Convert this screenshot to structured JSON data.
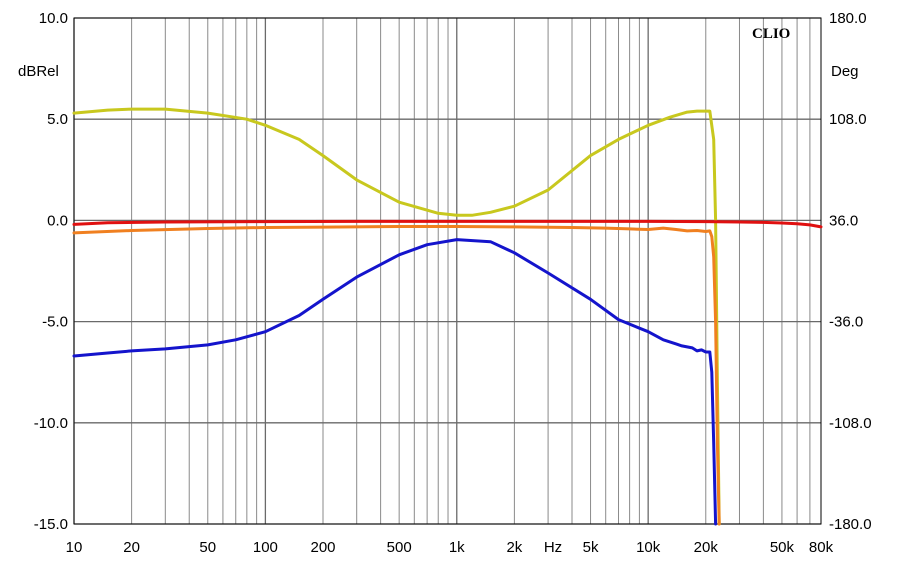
{
  "chart_data": {
    "type": "line",
    "logo": "CLIO",
    "y_left_unit": "dBRel",
    "y_right_unit": "Deg",
    "x_unit": "Hz",
    "x_scale": "log",
    "xlim": [
      10,
      80000
    ],
    "ylim_left": [
      -15,
      10
    ],
    "ylim_right": [
      -180,
      180
    ],
    "grid": true,
    "x_major": [
      10,
      100,
      1000,
      10000
    ],
    "x_minor": [
      20,
      30,
      40,
      50,
      60,
      70,
      80,
      90,
      200,
      300,
      400,
      500,
      600,
      700,
      800,
      900,
      2000,
      3000,
      4000,
      5000,
      6000,
      7000,
      8000,
      9000,
      20000,
      30000,
      40000,
      50000,
      60000,
      70000
    ],
    "x_tick_labels": [
      {
        "x": 10,
        "label": "10"
      },
      {
        "x": 20,
        "label": "20"
      },
      {
        "x": 50,
        "label": "50"
      },
      {
        "x": 100,
        "label": "100"
      },
      {
        "x": 200,
        "label": "200"
      },
      {
        "x": 500,
        "label": "500"
      },
      {
        "x": 1000,
        "label": "1k"
      },
      {
        "x": 2000,
        "label": "2k"
      },
      {
        "x": 5000,
        "label": "5k"
      },
      {
        "x": 10000,
        "label": "10k"
      },
      {
        "x": 20000,
        "label": "20k"
      },
      {
        "x": 50000,
        "label": "50k"
      },
      {
        "x": 80000,
        "label": "80k"
      }
    ],
    "y_left_ticks": [
      {
        "y": 10,
        "label": "10.0"
      },
      {
        "y": 5,
        "label": "5.0"
      },
      {
        "y": 0,
        "label": "0.0"
      },
      {
        "y": -5,
        "label": "-5.0"
      },
      {
        "y": -10,
        "label": "-10.0"
      },
      {
        "y": -15,
        "label": "-15.0"
      }
    ],
    "y_right_ticks": [
      {
        "y": 180,
        "label": "180.0"
      },
      {
        "y": 108,
        "label": "108.0"
      },
      {
        "y": 36,
        "label": "36.0"
      },
      {
        "y": -36,
        "label": "-36.0"
      },
      {
        "y": -108,
        "label": "-108.0"
      },
      {
        "y": -180,
        "label": "-180.0"
      }
    ],
    "series": [
      {
        "color": "#c8c81e",
        "x": [
          10,
          15,
          20,
          30,
          50,
          80,
          100,
          150,
          200,
          300,
          500,
          800,
          1000,
          1200,
          1500,
          2000,
          3000,
          5000,
          7000,
          10000,
          13000,
          16000,
          18000,
          20000,
          21000,
          22000,
          22500,
          23000,
          23500
        ],
        "y": [
          5.3,
          5.45,
          5.5,
          5.5,
          5.3,
          5.0,
          4.7,
          4.0,
          3.2,
          2.0,
          0.9,
          0.35,
          0.25,
          0.25,
          0.4,
          0.7,
          1.5,
          3.2,
          4.0,
          4.7,
          5.1,
          5.35,
          5.4,
          5.4,
          5.4,
          4.0,
          0.0,
          -8.0,
          -15.0
        ]
      },
      {
        "color": "#e01010",
        "x": [
          10,
          15,
          30,
          100,
          300,
          1000,
          3000,
          10000,
          20000,
          30000,
          40000,
          50000,
          60000,
          70000,
          80000
        ],
        "y": [
          -0.2,
          -0.12,
          -0.08,
          -0.06,
          -0.05,
          -0.05,
          -0.05,
          -0.05,
          -0.06,
          -0.08,
          -0.1,
          -0.13,
          -0.17,
          -0.22,
          -0.32
        ]
      },
      {
        "color": "#f08020",
        "x": [
          10,
          20,
          50,
          100,
          200,
          500,
          1000,
          2000,
          4000,
          6000,
          8000,
          10000,
          12000,
          14000,
          16000,
          18000,
          20000,
          21000,
          21500,
          22000,
          22500,
          23000,
          23500
        ],
        "y": [
          -0.62,
          -0.5,
          -0.4,
          -0.35,
          -0.33,
          -0.3,
          -0.3,
          -0.32,
          -0.35,
          -0.38,
          -0.42,
          -0.45,
          -0.38,
          -0.45,
          -0.52,
          -0.5,
          -0.55,
          -0.52,
          -0.8,
          -1.8,
          -5.0,
          -11.0,
          -15.0
        ]
      },
      {
        "color": "#1414cc",
        "x": [
          10,
          15,
          20,
          30,
          50,
          70,
          100,
          150,
          200,
          300,
          500,
          700,
          1000,
          1500,
          2000,
          3000,
          5000,
          7000,
          10000,
          12000,
          14000,
          15000,
          17000,
          18000,
          19000,
          20000,
          21000,
          21500,
          22000,
          22500
        ],
        "y": [
          -6.7,
          -6.55,
          -6.45,
          -6.35,
          -6.15,
          -5.9,
          -5.5,
          -4.7,
          -3.9,
          -2.8,
          -1.7,
          -1.2,
          -0.95,
          -1.05,
          -1.6,
          -2.6,
          -3.9,
          -4.9,
          -5.5,
          -5.9,
          -6.1,
          -6.2,
          -6.3,
          -6.45,
          -6.4,
          -6.5,
          -6.5,
          -7.5,
          -11.0,
          -15.0
        ]
      }
    ]
  }
}
